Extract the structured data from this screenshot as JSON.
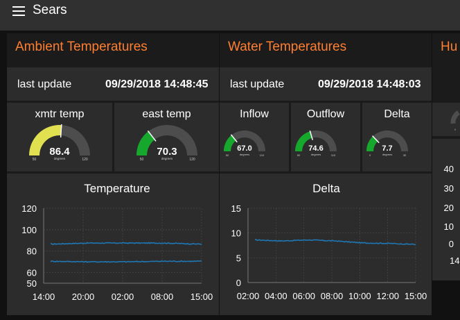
{
  "app": {
    "title": "Sears",
    "menu_icon": "hamburger-menu-icon"
  },
  "groups": {
    "ambient": {
      "title": "Ambient Temperatures"
    },
    "water": {
      "title": "Water Temperatures"
    },
    "humidity": {
      "title": "Hu"
    }
  },
  "ambient_update": {
    "label": "last update",
    "value": "09/29/2018 14:48:45"
  },
  "water_update": {
    "label": "last update",
    "value": "09/29/2018 14:48:03"
  },
  "gauges": [
    {
      "id": "xmtr",
      "label": "xmtr temp",
      "value": "86.4",
      "numeric": 86.4,
      "min": "50",
      "max": "120",
      "min_n": 50,
      "max_n": 120,
      "units": "degrees",
      "color": "#e0e050"
    },
    {
      "id": "east",
      "label": "east temp",
      "value": "70.3",
      "numeric": 70.3,
      "min": "50",
      "max": "120",
      "min_n": 50,
      "max_n": 120,
      "units": "degrees",
      "color": "#16a82c"
    },
    {
      "id": "inflow",
      "label": "Inflow",
      "value": "67.0",
      "numeric": 67.0,
      "min": "50",
      "max": "110",
      "min_n": 50,
      "max_n": 110,
      "units": "degrees",
      "color": "#16a82c"
    },
    {
      "id": "outflow",
      "label": "Outflow",
      "value": "74.6",
      "numeric": 74.6,
      "min": "50",
      "max": "110",
      "min_n": 50,
      "max_n": 110,
      "units": "degrees",
      "color": "#16a82c"
    },
    {
      "id": "delta",
      "label": "Delta",
      "value": "7.7",
      "numeric": 7.7,
      "min": "0",
      "max": "30",
      "min_n": 0,
      "max_n": 30,
      "units": "degrees",
      "color": "#16a82c"
    }
  ],
  "humidity_axis": {
    "ticks": [
      "40",
      "30",
      "20",
      "10",
      "0"
    ],
    "first_x": "14"
  },
  "colors": {
    "accent": "#ff7f32",
    "series": "#1f77b4",
    "track": "#4d4d4d"
  },
  "chart_data": [
    {
      "type": "line",
      "title": "Temperature",
      "xlabel": "",
      "ylabel": "",
      "x_ticks": [
        "14:00",
        "20:00",
        "02:00",
        "08:00",
        "15:00"
      ],
      "y_ticks": [
        "120",
        "100",
        "80",
        "60",
        "50"
      ],
      "ylim": [
        50,
        120
      ],
      "grid": true,
      "series": [
        {
          "x": [
            "14:00",
            "20:00",
            "02:00",
            "08:00",
            "15:00"
          ],
          "values": [
            86.5,
            87.5,
            87.5,
            87.5,
            86.5
          ]
        },
        {
          "x": [
            "14:00",
            "20:00",
            "02:00",
            "08:00",
            "15:00"
          ],
          "values": [
            70.5,
            70,
            70,
            70.5,
            70.5
          ]
        }
      ]
    },
    {
      "type": "line",
      "title": "Delta",
      "xlabel": "",
      "ylabel": "",
      "x_ticks": [
        "02:00",
        "04:00",
        "06:00",
        "08:00",
        "10:00",
        "12:00",
        "15:00"
      ],
      "y_ticks": [
        "15",
        "10",
        "5",
        "0"
      ],
      "ylim": [
        0,
        15
      ],
      "grid": true,
      "series": [
        {
          "x": [
            "02:00",
            "04:00",
            "06:00",
            "08:00",
            "10:00",
            "12:00",
            "15:00"
          ],
          "values": [
            8.6,
            8.4,
            8.6,
            8.4,
            8.0,
            7.9,
            7.7
          ]
        }
      ]
    }
  ]
}
